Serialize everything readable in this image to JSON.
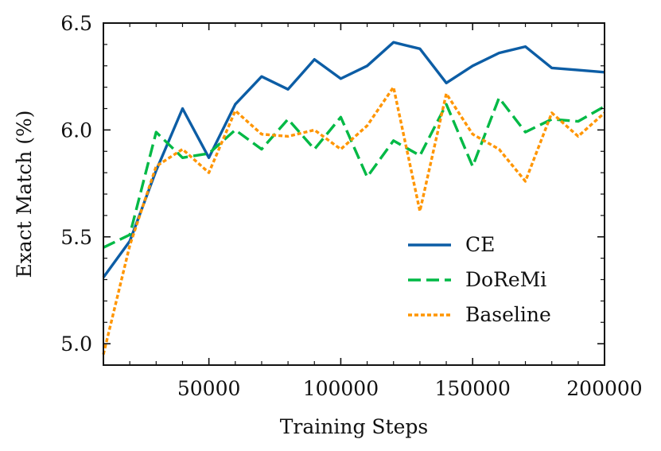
{
  "chart_data": {
    "type": "line",
    "title": "",
    "xlabel": "Training Steps",
    "ylabel": "Exact Match (%)",
    "xlim": [
      10000,
      200000
    ],
    "ylim": [
      4.9,
      6.5
    ],
    "xticks": [
      50000,
      100000,
      150000,
      200000
    ],
    "xtick_labels": [
      "50000",
      "100000",
      "150000",
      "200000"
    ],
    "yticks": [
      5.0,
      5.5,
      6.0,
      6.5
    ],
    "ytick_labels": [
      "5.0",
      "5.5",
      "6.0",
      "6.5"
    ],
    "grid": false,
    "legend_position": "lower-right",
    "x": [
      10000,
      20000,
      30000,
      40000,
      50000,
      60000,
      70000,
      80000,
      90000,
      100000,
      110000,
      120000,
      130000,
      140000,
      150000,
      160000,
      170000,
      180000,
      190000,
      200000
    ],
    "series": [
      {
        "name": "CE",
        "color": "#0C5DA5",
        "style": "solid",
        "values": [
          5.31,
          5.48,
          5.81,
          6.1,
          5.87,
          6.12,
          6.25,
          6.19,
          6.33,
          6.24,
          6.3,
          6.41,
          6.38,
          6.22,
          6.3,
          6.36,
          6.39,
          6.29,
          6.28,
          6.27
        ]
      },
      {
        "name": "DoReMi",
        "color": "#00B945",
        "style": "dashed",
        "values": [
          5.45,
          5.51,
          5.99,
          5.87,
          5.89,
          6.0,
          5.91,
          6.05,
          5.91,
          6.06,
          5.78,
          5.95,
          5.88,
          6.12,
          5.83,
          6.15,
          5.99,
          6.05,
          6.04,
          6.11
        ]
      },
      {
        "name": "Baseline",
        "color": "#FF9500",
        "style": "dotted",
        "values": [
          4.95,
          5.46,
          5.83,
          5.91,
          5.8,
          6.09,
          5.98,
          5.97,
          6.0,
          5.91,
          6.02,
          6.2,
          5.62,
          6.17,
          5.98,
          5.91,
          5.76,
          6.08,
          5.97,
          6.08
        ]
      }
    ]
  }
}
